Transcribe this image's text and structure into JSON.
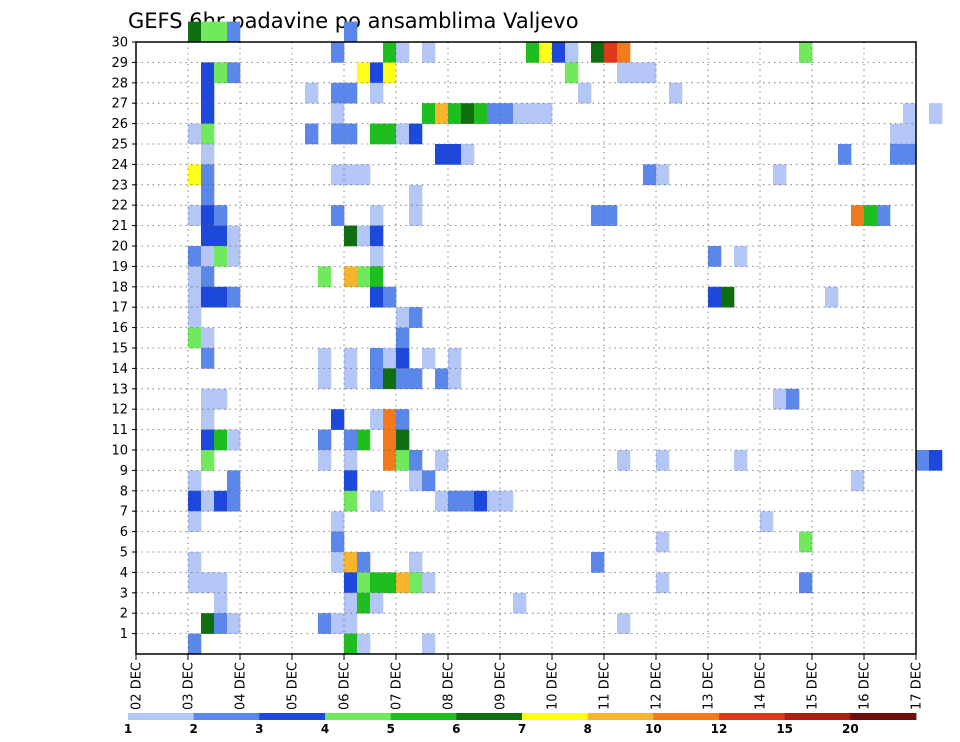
{
  "chart_data": {
    "type": "heatmap",
    "title": "GEFS 6hr padavine po ansamblima Valjevo",
    "xlabel": "",
    "ylabel": "",
    "x_ticks": [
      "02 DEC",
      "03 DEC",
      "04 DEC",
      "05 DEC",
      "06 DEC",
      "07 DEC",
      "08 DEC",
      "09 DEC",
      "10 DEC",
      "11 DEC",
      "12 DEC",
      "13 DEC",
      "14 DEC",
      "15 DEC",
      "16 DEC",
      "17 DEC"
    ],
    "y_ticks": [
      "1",
      "2",
      "3",
      "4",
      "5",
      "6",
      "7",
      "8",
      "9",
      "10",
      "11",
      "12",
      "13",
      "14",
      "15",
      "16",
      "17",
      "18",
      "19",
      "20",
      "21",
      "22",
      "23",
      "24",
      "25",
      "26",
      "27",
      "28",
      "29",
      "30"
    ],
    "ylim": [
      0,
      30
    ],
    "grid": true,
    "colorbar": {
      "labels": [
        "1",
        "2",
        "3",
        "4",
        "5",
        "6",
        "7",
        "8",
        "10",
        "12",
        "15",
        "20"
      ],
      "colors": [
        "#b3c6f5",
        "#5b86ea",
        "#1c49dc",
        "#70ea5c",
        "#1ebe1e",
        "#0f6e0f",
        "#ffff1a",
        "#f6b52d",
        "#f27a1a",
        "#e0381c",
        "#a82010",
        "#6e0e0e"
      ]
    },
    "notes": "Cell values are precipitation class indices (0 = 1-2, 1 = 2-3, ... 11 = >20). x = 6-hour step index from 02 DEC 00 (4 per day), y = ensemble member.",
    "cells": [
      [
        4,
        30,
        5
      ],
      [
        5,
        30,
        3
      ],
      [
        6,
        30,
        3
      ],
      [
        7,
        30,
        1
      ],
      [
        16,
        30,
        1
      ],
      [
        15,
        29,
        1
      ],
      [
        19,
        29,
        4
      ],
      [
        20,
        29,
        0
      ],
      [
        22,
        29,
        0
      ],
      [
        30,
        29,
        4
      ],
      [
        31,
        29,
        6
      ],
      [
        32,
        29,
        2
      ],
      [
        33,
        29,
        0
      ],
      [
        35,
        29,
        5
      ],
      [
        36,
        29,
        9
      ],
      [
        37,
        29,
        8
      ],
      [
        51,
        29,
        3
      ],
      [
        5,
        28,
        2
      ],
      [
        6,
        28,
        3
      ],
      [
        7,
        28,
        1
      ],
      [
        17,
        28,
        6
      ],
      [
        18,
        28,
        2
      ],
      [
        19,
        28,
        6
      ],
      [
        33,
        28,
        3
      ],
      [
        37,
        28,
        0
      ],
      [
        38,
        28,
        0
      ],
      [
        39,
        28,
        0
      ],
      [
        5,
        27,
        2
      ],
      [
        13,
        27,
        0
      ],
      [
        15,
        27,
        1
      ],
      [
        16,
        27,
        1
      ],
      [
        18,
        27,
        0
      ],
      [
        34,
        27,
        0
      ],
      [
        41,
        27,
        0
      ],
      [
        5,
        26,
        2
      ],
      [
        15,
        26,
        0
      ],
      [
        22,
        26,
        4
      ],
      [
        23,
        26,
        7
      ],
      [
        24,
        26,
        4
      ],
      [
        25,
        26,
        5
      ],
      [
        26,
        26,
        4
      ],
      [
        27,
        26,
        1
      ],
      [
        28,
        26,
        1
      ],
      [
        29,
        26,
        0
      ],
      [
        30,
        26,
        0
      ],
      [
        31,
        26,
        0
      ],
      [
        59,
        26,
        0
      ],
      [
        61,
        26,
        0
      ],
      [
        4,
        25,
        0
      ],
      [
        5,
        25,
        3
      ],
      [
        13,
        25,
        1
      ],
      [
        15,
        25,
        1
      ],
      [
        16,
        25,
        1
      ],
      [
        18,
        25,
        4
      ],
      [
        19,
        25,
        4
      ],
      [
        20,
        25,
        0
      ],
      [
        21,
        25,
        2
      ],
      [
        58,
        25,
        0
      ],
      [
        59,
        25,
        0
      ],
      [
        5,
        24,
        0
      ],
      [
        23,
        24,
        2
      ],
      [
        24,
        24,
        2
      ],
      [
        25,
        24,
        0
      ],
      [
        54,
        24,
        1
      ],
      [
        58,
        24,
        1
      ],
      [
        59,
        24,
        1
      ],
      [
        4,
        23,
        6
      ],
      [
        5,
        23,
        1
      ],
      [
        15,
        23,
        0
      ],
      [
        16,
        23,
        0
      ],
      [
        17,
        23,
        0
      ],
      [
        39,
        23,
        1
      ],
      [
        40,
        23,
        0
      ],
      [
        49,
        23,
        0
      ],
      [
        5,
        22,
        1
      ],
      [
        21,
        22,
        0
      ],
      [
        4,
        21,
        0
      ],
      [
        5,
        21,
        2
      ],
      [
        6,
        21,
        1
      ],
      [
        15,
        21,
        1
      ],
      [
        18,
        21,
        0
      ],
      [
        21,
        21,
        0
      ],
      [
        35,
        21,
        1
      ],
      [
        36,
        21,
        1
      ],
      [
        55,
        21,
        8
      ],
      [
        56,
        21,
        4
      ],
      [
        57,
        21,
        1
      ],
      [
        5,
        20,
        2
      ],
      [
        6,
        20,
        2
      ],
      [
        7,
        20,
        0
      ],
      [
        16,
        20,
        5
      ],
      [
        17,
        20,
        0
      ],
      [
        18,
        20,
        2
      ],
      [
        4,
        19,
        1
      ],
      [
        5,
        19,
        0
      ],
      [
        6,
        19,
        3
      ],
      [
        7,
        19,
        0
      ],
      [
        18,
        19,
        0
      ],
      [
        44,
        19,
        1
      ],
      [
        46,
        19,
        0
      ],
      [
        4,
        18,
        0
      ],
      [
        5,
        18,
        1
      ],
      [
        14,
        18,
        3
      ],
      [
        16,
        18,
        7
      ],
      [
        17,
        18,
        3
      ],
      [
        18,
        18,
        4
      ],
      [
        4,
        17,
        0
      ],
      [
        5,
        17,
        2
      ],
      [
        6,
        17,
        2
      ],
      [
        7,
        17,
        1
      ],
      [
        18,
        17,
        2
      ],
      [
        19,
        17,
        1
      ],
      [
        44,
        17,
        2
      ],
      [
        45,
        17,
        5
      ],
      [
        53,
        17,
        0
      ],
      [
        4,
        16,
        0
      ],
      [
        20,
        16,
        0
      ],
      [
        21,
        16,
        1
      ],
      [
        4,
        15,
        3
      ],
      [
        5,
        15,
        0
      ],
      [
        20,
        15,
        1
      ],
      [
        5,
        14,
        1
      ],
      [
        14,
        14,
        0
      ],
      [
        16,
        14,
        0
      ],
      [
        18,
        14,
        1
      ],
      [
        19,
        14,
        0
      ],
      [
        20,
        14,
        2
      ],
      [
        22,
        14,
        0
      ],
      [
        24,
        14,
        0
      ],
      [
        14,
        13,
        0
      ],
      [
        16,
        13,
        0
      ],
      [
        18,
        13,
        1
      ],
      [
        19,
        13,
        5
      ],
      [
        20,
        13,
        1
      ],
      [
        21,
        13,
        1
      ],
      [
        23,
        13,
        1
      ],
      [
        24,
        13,
        0
      ],
      [
        5,
        12,
        0
      ],
      [
        6,
        12,
        0
      ],
      [
        49,
        12,
        0
      ],
      [
        50,
        12,
        1
      ],
      [
        5,
        11,
        0
      ],
      [
        15,
        11,
        2
      ],
      [
        18,
        11,
        0
      ],
      [
        19,
        11,
        8
      ],
      [
        20,
        11,
        1
      ],
      [
        5,
        10,
        2
      ],
      [
        6,
        10,
        4
      ],
      [
        7,
        10,
        0
      ],
      [
        14,
        10,
        1
      ],
      [
        16,
        10,
        1
      ],
      [
        17,
        10,
        4
      ],
      [
        19,
        10,
        8
      ],
      [
        20,
        10,
        5
      ],
      [
        5,
        9,
        3
      ],
      [
        14,
        9,
        0
      ],
      [
        16,
        9,
        0
      ],
      [
        19,
        9,
        8
      ],
      [
        20,
        9,
        3
      ],
      [
        21,
        9,
        1
      ],
      [
        23,
        9,
        0
      ],
      [
        37,
        9,
        0
      ],
      [
        40,
        9,
        0
      ],
      [
        46,
        9,
        0
      ],
      [
        60,
        9,
        1
      ],
      [
        61,
        9,
        2
      ],
      [
        4,
        8,
        0
      ],
      [
        7,
        8,
        1
      ],
      [
        16,
        8,
        2
      ],
      [
        21,
        8,
        0
      ],
      [
        22,
        8,
        1
      ],
      [
        55,
        8,
        0
      ],
      [
        4,
        7,
        2
      ],
      [
        5,
        7,
        0
      ],
      [
        6,
        7,
        2
      ],
      [
        7,
        7,
        1
      ],
      [
        16,
        7,
        3
      ],
      [
        18,
        7,
        0
      ],
      [
        23,
        7,
        0
      ],
      [
        24,
        7,
        1
      ],
      [
        25,
        7,
        1
      ],
      [
        26,
        7,
        2
      ],
      [
        27,
        7,
        0
      ],
      [
        28,
        7,
        0
      ],
      [
        4,
        6,
        0
      ],
      [
        15,
        6,
        0
      ],
      [
        48,
        6,
        0
      ],
      [
        15,
        5,
        1
      ],
      [
        40,
        5,
        0
      ],
      [
        51,
        5,
        3
      ],
      [
        4,
        4,
        0
      ],
      [
        15,
        4,
        0
      ],
      [
        16,
        4,
        7
      ],
      [
        17,
        4,
        1
      ],
      [
        21,
        4,
        0
      ],
      [
        35,
        4,
        1
      ],
      [
        4,
        3,
        0
      ],
      [
        5,
        3,
        0
      ],
      [
        6,
        3,
        0
      ],
      [
        16,
        3,
        2
      ],
      [
        17,
        3,
        3
      ],
      [
        18,
        3,
        4
      ],
      [
        19,
        3,
        4
      ],
      [
        20,
        3,
        7
      ],
      [
        21,
        3,
        3
      ],
      [
        22,
        3,
        0
      ],
      [
        40,
        3,
        0
      ],
      [
        51,
        3,
        1
      ],
      [
        6,
        2,
        0
      ],
      [
        16,
        2,
        0
      ],
      [
        17,
        2,
        4
      ],
      [
        18,
        2,
        0
      ],
      [
        29,
        2,
        0
      ],
      [
        5,
        1,
        5
      ],
      [
        6,
        1,
        1
      ],
      [
        7,
        1,
        0
      ],
      [
        14,
        1,
        1
      ],
      [
        15,
        1,
        0
      ],
      [
        16,
        1,
        0
      ],
      [
        37,
        1,
        0
      ],
      [
        4,
        0,
        1
      ],
      [
        16,
        0,
        4
      ],
      [
        17,
        0,
        0
      ],
      [
        22,
        0,
        0
      ]
    ]
  }
}
